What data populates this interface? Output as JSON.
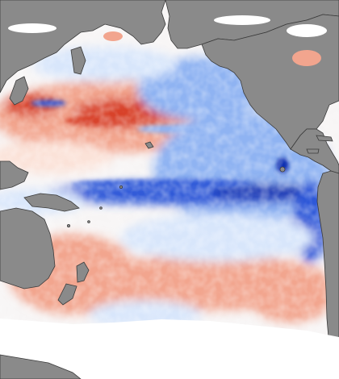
{
  "map": {
    "kind": "sea-surface-temperature-anomaly",
    "region": "Pacific Ocean",
    "colors": {
      "land": "#8a8a8a",
      "coast": "#3a3a3a",
      "ice": "#ffffff",
      "warm_strong": "#d8432c",
      "warm": "#f2a58e",
      "warm_light": "#fbe2d8",
      "neutral": "#f7f5f5",
      "cool_light": "#d8e6fb",
      "cool": "#8fb3f2",
      "cool_strong": "#2f58d8",
      "cool_deep": "#0d2fb0"
    }
  }
}
